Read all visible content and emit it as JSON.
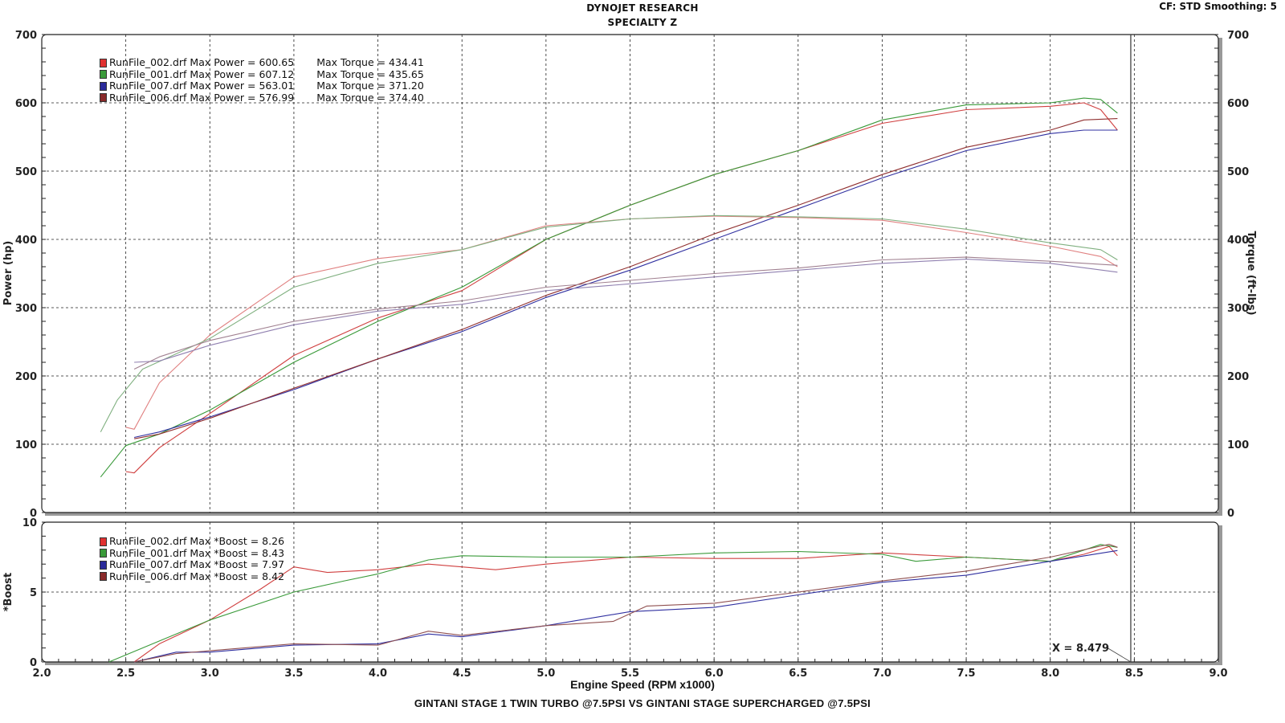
{
  "header": {
    "title_line1": "DYNOJET RESEARCH",
    "title_line2": "SPECIALTY Z",
    "cf_smoothing": "CF: STD  Smoothing: 5"
  },
  "footer": {
    "xlabel": "Engine Speed (RPM x1000)",
    "subtitle": "GINTANI STAGE 1 TWIN TURBO @7.5PSI VS GINTANI STAGE SUPERCHARGED @7.5PSI"
  },
  "legend_power": [
    {
      "file": "RunFile_002.drf",
      "label": "RunFile_002.drf Max Power = 600.65",
      "torque": "Max Torque = 434.41",
      "color": "#e03030"
    },
    {
      "file": "RunFile_001.drf",
      "label": "RunFile_001.drf Max Power = 607.12",
      "torque": "Max Torque = 435.65",
      "color": "#3a9a3a"
    },
    {
      "file": "RunFile_007.drf",
      "label": "RunFile_007.drf Max Power = 563.01",
      "torque": "Max Torque = 371.20",
      "color": "#2a2a9a"
    },
    {
      "file": "RunFile_006.drf",
      "label": "RunFile_006.drf Max Power = 576.99",
      "torque": "Max Torque = 374.40",
      "color": "#8a2a2a"
    }
  ],
  "legend_boost": [
    {
      "file": "RunFile_002.drf",
      "label": "RunFile_002.drf Max *Boost = 8.26",
      "color": "#e03030"
    },
    {
      "file": "RunFile_001.drf",
      "label": "RunFile_001.drf Max *Boost = 8.43",
      "color": "#3a9a3a"
    },
    {
      "file": "RunFile_007.drf",
      "label": "RunFile_007.drf Max *Boost = 7.97",
      "color": "#2a2a9a"
    },
    {
      "file": "RunFile_006.drf",
      "label": "RunFile_006.drf Max *Boost = 8.42",
      "color": "#8a2a2a"
    }
  ],
  "cursor": {
    "label": "X = 8.479",
    "x": 8.479
  },
  "chart_data": [
    {
      "type": "line",
      "title": "DYNOJET RESEARCH - SPECIALTY Z",
      "xlabel": "Engine Speed (RPM x1000)",
      "ylabel": "Power (hp)",
      "y2label": "Torque (ft-lbs)",
      "xlim": [
        2.0,
        9.0
      ],
      "ylim": [
        0,
        700
      ],
      "y2lim": [
        0,
        700
      ],
      "xticks": [
        "2.0",
        "2.5",
        "3.0",
        "3.5",
        "4.0",
        "4.5",
        "5.0",
        "5.5",
        "6.0",
        "6.5",
        "7.0",
        "7.5",
        "8.0",
        "8.5",
        "9.0"
      ],
      "yticks": [
        "0",
        "100",
        "200",
        "300",
        "400",
        "500",
        "600",
        "700"
      ],
      "grid": true,
      "legend_position": "top-left",
      "series": [
        {
          "name": "RunFile_002.drf Power",
          "color": "#d04040",
          "x": [
            2.5,
            2.55,
            2.7,
            3.0,
            3.5,
            4.0,
            4.5,
            5.0,
            5.5,
            6.0,
            6.5,
            7.0,
            7.5,
            8.0,
            8.2,
            8.3,
            8.4
          ],
          "values": [
            60,
            58,
            95,
            145,
            230,
            285,
            325,
            400,
            450,
            495,
            530,
            570,
            590,
            595,
            600,
            590,
            560
          ]
        },
        {
          "name": "RunFile_001.drf Power",
          "color": "#3a9a3a",
          "x": [
            2.35,
            2.5,
            2.7,
            3.0,
            3.5,
            4.0,
            4.5,
            5.0,
            5.5,
            6.0,
            6.5,
            7.0,
            7.5,
            8.0,
            8.2,
            8.3,
            8.4
          ],
          "values": [
            52,
            98,
            115,
            150,
            220,
            280,
            330,
            400,
            450,
            495,
            530,
            575,
            597,
            600,
            607,
            605,
            585
          ]
        },
        {
          "name": "RunFile_007.drf Power",
          "color": "#3030a0",
          "x": [
            2.55,
            2.7,
            3.0,
            3.5,
            4.0,
            4.5,
            5.0,
            5.5,
            6.0,
            6.5,
            7.0,
            7.5,
            8.0,
            8.2,
            8.4
          ],
          "values": [
            110,
            118,
            140,
            180,
            225,
            265,
            315,
            355,
            400,
            445,
            490,
            530,
            555,
            560,
            560
          ]
        },
        {
          "name": "RunFile_006.drf Power",
          "color": "#903030",
          "x": [
            2.55,
            2.7,
            3.0,
            3.5,
            4.0,
            4.5,
            5.0,
            5.5,
            6.0,
            6.5,
            7.0,
            7.5,
            8.0,
            8.2,
            8.4
          ],
          "values": [
            108,
            115,
            138,
            182,
            225,
            268,
            318,
            360,
            408,
            450,
            495,
            535,
            560,
            575,
            577
          ]
        },
        {
          "name": "RunFile_002.drf Torque",
          "color": "#e08080",
          "x": [
            2.5,
            2.55,
            2.7,
            3.0,
            3.5,
            4.0,
            4.5,
            5.0,
            5.5,
            6.0,
            6.5,
            7.0,
            7.5,
            8.0,
            8.3,
            8.4
          ],
          "values": [
            125,
            122,
            190,
            260,
            345,
            372,
            385,
            420,
            430,
            434,
            432,
            428,
            410,
            390,
            375,
            360
          ]
        },
        {
          "name": "RunFile_001.drf Torque",
          "color": "#80b080",
          "x": [
            2.35,
            2.45,
            2.6,
            3.0,
            3.5,
            4.0,
            4.5,
            5.0,
            5.5,
            6.0,
            6.5,
            7.0,
            7.5,
            8.0,
            8.3,
            8.4
          ],
          "values": [
            118,
            165,
            210,
            255,
            330,
            365,
            385,
            418,
            430,
            435,
            433,
            430,
            415,
            395,
            385,
            370
          ]
        },
        {
          "name": "RunFile_007.drf Torque",
          "color": "#9080b0",
          "x": [
            2.55,
            2.7,
            3.0,
            3.5,
            4.0,
            4.5,
            5.0,
            5.5,
            6.0,
            6.5,
            7.0,
            7.5,
            8.0,
            8.4
          ],
          "values": [
            220,
            222,
            245,
            275,
            295,
            305,
            325,
            335,
            345,
            355,
            365,
            371,
            365,
            352
          ]
        },
        {
          "name": "RunFile_006.drf Torque",
          "color": "#a08090",
          "x": [
            2.55,
            2.7,
            3.0,
            3.5,
            4.0,
            4.5,
            5.0,
            5.5,
            6.0,
            6.5,
            7.0,
            7.5,
            8.0,
            8.4
          ],
          "values": [
            210,
            228,
            252,
            280,
            298,
            310,
            330,
            340,
            350,
            358,
            370,
            374,
            368,
            362
          ]
        }
      ]
    },
    {
      "type": "line",
      "xlabel": "Engine Speed (RPM x1000)",
      "ylabel": "*Boost",
      "xlim": [
        2.0,
        9.0
      ],
      "ylim": [
        0,
        10
      ],
      "yticks": [
        "0",
        "5",
        "10"
      ],
      "xticks": [
        "2.0",
        "2.5",
        "3.0",
        "3.5",
        "4.0",
        "4.5",
        "5.0",
        "5.5",
        "6.0",
        "6.5",
        "7.0",
        "7.5",
        "8.0",
        "8.5",
        "9.0"
      ],
      "grid": true,
      "legend_position": "top-left",
      "series": [
        {
          "name": "RunFile_002.drf *Boost",
          "color": "#d04040",
          "x": [
            2.55,
            2.7,
            3.0,
            3.3,
            3.5,
            3.7,
            4.0,
            4.3,
            4.7,
            5.0,
            5.5,
            6.0,
            6.5,
            7.0,
            7.5,
            8.0,
            8.2,
            8.35,
            8.4
          ],
          "values": [
            0,
            1.3,
            3.0,
            5.2,
            6.8,
            6.4,
            6.6,
            7.0,
            6.6,
            7.0,
            7.5,
            7.4,
            7.4,
            7.8,
            7.5,
            7.2,
            7.7,
            8.26,
            7.6
          ]
        },
        {
          "name": "RunFile_001.drf *Boost",
          "color": "#3a9a3a",
          "x": [
            2.4,
            2.7,
            3.0,
            3.5,
            3.8,
            4.0,
            4.3,
            4.5,
            5.0,
            5.5,
            6.0,
            6.5,
            7.0,
            7.2,
            7.5,
            8.0,
            8.3,
            8.4
          ],
          "values": [
            0,
            1.5,
            3.0,
            5.0,
            5.8,
            6.3,
            7.3,
            7.6,
            7.5,
            7.5,
            7.8,
            7.9,
            7.7,
            7.2,
            7.5,
            7.2,
            8.4,
            8.2
          ]
        },
        {
          "name": "RunFile_007.drf *Boost",
          "color": "#3030a0",
          "x": [
            2.55,
            2.8,
            3.0,
            3.5,
            4.0,
            4.3,
            4.5,
            5.0,
            5.5,
            6.0,
            6.5,
            7.0,
            7.5,
            8.0,
            8.4
          ],
          "values": [
            0,
            0.7,
            0.7,
            1.2,
            1.3,
            2.0,
            1.8,
            2.6,
            3.6,
            3.9,
            4.8,
            5.7,
            6.2,
            7.2,
            7.97
          ]
        },
        {
          "name": "RunFile_006.drf *Boost",
          "color": "#905050",
          "x": [
            2.55,
            2.8,
            3.0,
            3.5,
            4.0,
            4.3,
            4.5,
            5.0,
            5.4,
            5.6,
            6.0,
            6.5,
            7.0,
            7.5,
            8.0,
            8.35,
            8.4
          ],
          "values": [
            0,
            0.6,
            0.8,
            1.3,
            1.2,
            2.2,
            1.9,
            2.6,
            2.9,
            4.0,
            4.2,
            5.0,
            5.8,
            6.5,
            7.5,
            8.42,
            8.2
          ]
        }
      ]
    }
  ]
}
